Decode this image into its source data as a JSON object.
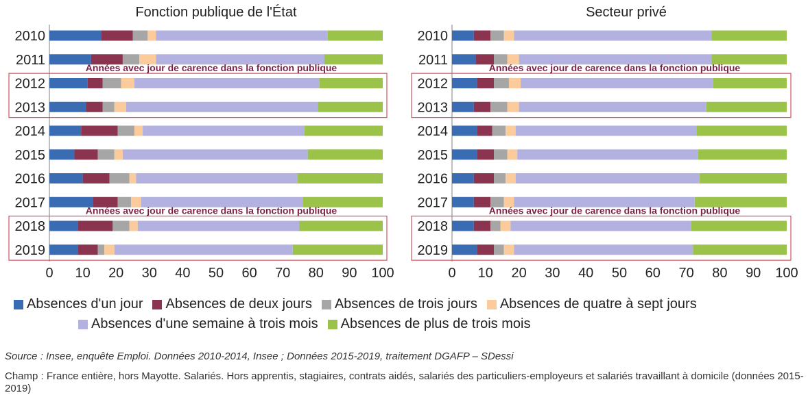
{
  "colors": {
    "series": [
      "#3a6cb3",
      "#8b3450",
      "#a6a6a6",
      "#fccb9c",
      "#b3b1df",
      "#9bc34a"
    ],
    "annotation": "#7a2547",
    "highlight_box": "#d2535f",
    "axis": "#bfbfbf"
  },
  "annotation_text": "Années avec jour de carence dans la fonction publique",
  "chart_data": [
    {
      "type": "bar",
      "orientation": "horizontal",
      "stacked": true,
      "title": "Fonction publique de l'État",
      "categories": [
        "2010",
        "2011",
        "2012",
        "2013",
        "2014",
        "2015",
        "2016",
        "2017",
        "2018",
        "2019"
      ],
      "xlim": [
        0,
        100
      ],
      "xticks": [
        "0",
        "10",
        "20",
        "30",
        "40",
        "50",
        "60",
        "70",
        "80",
        "90",
        "100"
      ],
      "series": [
        {
          "name": "Absences d'un jour",
          "values": [
            15.5,
            12.5,
            11.5,
            11,
            9.5,
            7.5,
            10,
            13,
            8.5,
            8.5
          ]
        },
        {
          "name": "Absences de deux jours",
          "values": [
            9.5,
            9.5,
            4.5,
            5,
            11,
            7,
            8,
            7.5,
            10.5,
            6
          ]
        },
        {
          "name": "Absences de trois jours",
          "values": [
            4.5,
            5,
            5.5,
            3.5,
            5,
            5,
            6,
            4,
            5,
            2
          ]
        },
        {
          "name": "Absences de quatre à sept jours",
          "values": [
            2.5,
            5,
            4,
            3.5,
            2.5,
            2.5,
            2,
            3,
            2.5,
            3
          ]
        },
        {
          "name": "Absences d'une semaine à trois mois",
          "values": [
            51.5,
            50.5,
            55.5,
            57.5,
            48.5,
            55.5,
            48.5,
            48.5,
            48.5,
            53.5
          ]
        },
        {
          "name": "Absences de plus de trois mois",
          "values": [
            16.5,
            17.5,
            19,
            19.5,
            23.5,
            22.5,
            25.5,
            24,
            25,
            27
          ]
        }
      ],
      "highlight": {
        "groups": [
          [
            "2012",
            "2013"
          ],
          [
            "2018",
            "2019"
          ]
        ],
        "label": "Années avec jour de carence dans la fonction publique"
      }
    },
    {
      "type": "bar",
      "orientation": "horizontal",
      "stacked": true,
      "title": "Secteur privé",
      "categories": [
        "2010",
        "2011",
        "2012",
        "2013",
        "2014",
        "2015",
        "2016",
        "2017",
        "2018",
        "2019"
      ],
      "xlim": [
        0,
        100
      ],
      "xticks": [
        "0",
        "10",
        "20",
        "30",
        "40",
        "50",
        "60",
        "70",
        "80",
        "90",
        "100"
      ],
      "series": [
        {
          "name": "Absences d'un jour",
          "values": [
            6.5,
            7,
            7.5,
            6.5,
            7.5,
            7.5,
            6.5,
            6.5,
            6.5,
            7.5
          ]
        },
        {
          "name": "Absences de deux jours",
          "values": [
            5,
            5.5,
            5,
            5,
            4.5,
            5,
            6,
            5,
            5,
            5
          ]
        },
        {
          "name": "Absences de trois jours",
          "values": [
            4,
            4,
            4.5,
            5,
            4,
            4,
            3.5,
            4,
            3,
            3
          ]
        },
        {
          "name": "Absences de quatre à sept jours",
          "values": [
            3,
            3.5,
            3.5,
            3.5,
            3,
            3,
            3,
            3,
            3,
            3
          ]
        },
        {
          "name": "Absences d'une semaine à trois mois",
          "values": [
            59,
            57.5,
            57.5,
            56,
            54,
            54,
            55,
            54,
            54,
            53.5
          ]
        },
        {
          "name": "Absences de plus de trois mois",
          "values": [
            22.5,
            22.5,
            22,
            24,
            27,
            26.5,
            26,
            27.5,
            28.5,
            28
          ]
        }
      ],
      "highlight": {
        "groups": [
          [
            "2012",
            "2013"
          ],
          [
            "2018",
            "2019"
          ]
        ],
        "label": "Années avec jour de carence dans la fonction publique"
      }
    }
  ],
  "legend": {
    "row1": [
      "Absences d'un jour",
      "Absences de deux jours",
      "Absences de trois jours",
      "Absences de quatre à sept jours"
    ],
    "row2": [
      "Absences d'une semaine à trois mois",
      "Absences de plus de trois mois"
    ]
  },
  "source": "Source : Insee, enquête Emploi. Données 2010-2014, Insee ; Données 2015-2019, traitement DGAFP – SDessi",
  "champ": "Champ : France entière, hors Mayotte. Salariés. Hors apprentis, stagiaires, contrats aidés, salariés des particuliers-employeurs et salariés travaillant à domicile (données 2015-2019)"
}
